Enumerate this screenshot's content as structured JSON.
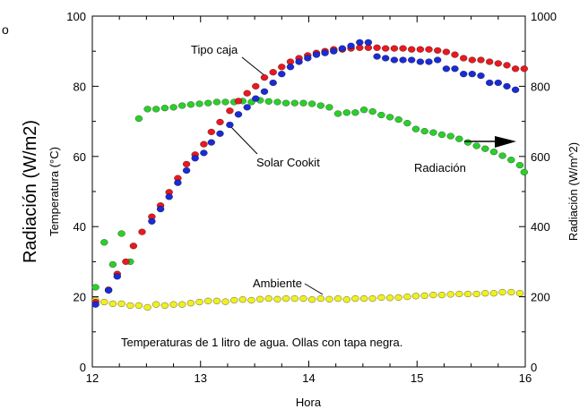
{
  "chart_data": {
    "type": "scatter",
    "xlabel": "Hora",
    "ylabel_left_outer": "Radiación (W/m2)",
    "ylabel_left": "Temperatura (°C)",
    "ylabel_right": "Radiación (W/m^2)",
    "corner_text": "o",
    "note": "Temperaturas de 1 litro de agua. Ollas con tapa negra.",
    "xlim": [
      12,
      16
    ],
    "ylim_left": [
      0,
      100
    ],
    "ylim_right": [
      0,
      1000
    ],
    "x_ticks": [
      "12",
      "13",
      "14",
      "15",
      "16"
    ],
    "y_ticks_left": [
      "0",
      "20",
      "40",
      "60",
      "80",
      "100"
    ],
    "y_ticks_right": [
      "0",
      "200",
      "400",
      "600",
      "800",
      "1000"
    ],
    "annotations": {
      "tipo_caja": "Tipo caja",
      "solar_cookit": "Solar Cookit",
      "radiacion": "Radiación",
      "ambiente": "Ambiente"
    },
    "colors": {
      "tipo_caja": "#e8191f",
      "solar_cookit": "#1a2bd6",
      "radiacion": "#2ad02a",
      "ambiente": "#f0f020"
    },
    "series": [
      {
        "name": "Tipo caja",
        "axis": "left",
        "points": [
          [
            12.03,
            18.5
          ],
          [
            12.15,
            22.0
          ],
          [
            12.23,
            26.5
          ],
          [
            12.31,
            30.0
          ],
          [
            12.38,
            34.5
          ],
          [
            12.46,
            38.5
          ],
          [
            12.55,
            42.8
          ],
          [
            12.63,
            46.0
          ],
          [
            12.71,
            49.8
          ],
          [
            12.79,
            53.8
          ],
          [
            12.87,
            57.8
          ],
          [
            12.95,
            60.5
          ],
          [
            13.03,
            63.5
          ],
          [
            13.1,
            67.0
          ],
          [
            13.18,
            69.8
          ],
          [
            13.27,
            73.0
          ],
          [
            13.35,
            75.8
          ],
          [
            13.43,
            78.0
          ],
          [
            13.51,
            80.0
          ],
          [
            13.59,
            82.5
          ],
          [
            13.67,
            84.0
          ],
          [
            13.75,
            85.5
          ],
          [
            13.83,
            87.0
          ],
          [
            13.91,
            88.0
          ],
          [
            13.99,
            88.8
          ],
          [
            14.07,
            89.5
          ],
          [
            14.15,
            90.0
          ],
          [
            14.23,
            90.5
          ],
          [
            14.31,
            90.5
          ],
          [
            14.39,
            90.8
          ],
          [
            14.47,
            91.0
          ],
          [
            14.55,
            91.0
          ],
          [
            14.63,
            91.0
          ],
          [
            14.71,
            90.8
          ],
          [
            14.79,
            90.8
          ],
          [
            14.87,
            90.8
          ],
          [
            14.95,
            90.5
          ],
          [
            15.03,
            90.5
          ],
          [
            15.11,
            90.5
          ],
          [
            15.19,
            90.2
          ],
          [
            15.27,
            89.8
          ],
          [
            15.35,
            89.0
          ],
          [
            15.43,
            88.0
          ],
          [
            15.51,
            87.5
          ],
          [
            15.59,
            87.5
          ],
          [
            15.67,
            87.0
          ],
          [
            15.75,
            86.5
          ],
          [
            15.83,
            86.0
          ],
          [
            15.91,
            85.0
          ],
          [
            15.99,
            85.0
          ]
        ]
      },
      {
        "name": "Solar Cookit",
        "axis": "left",
        "points": [
          [
            12.03,
            17.8
          ],
          [
            12.15,
            21.8
          ],
          [
            12.23,
            25.8
          ],
          [
            12.55,
            41.5
          ],
          [
            12.63,
            45.0
          ],
          [
            12.71,
            48.5
          ],
          [
            12.79,
            52.5
          ],
          [
            12.87,
            56.0
          ],
          [
            12.95,
            59.5
          ],
          [
            13.03,
            61.0
          ],
          [
            13.1,
            64.0
          ],
          [
            13.18,
            66.5
          ],
          [
            13.27,
            69.0
          ],
          [
            13.35,
            72.0
          ],
          [
            13.43,
            74.0
          ],
          [
            13.51,
            76.5
          ],
          [
            13.59,
            78.5
          ],
          [
            13.67,
            81.0
          ],
          [
            13.75,
            83.5
          ],
          [
            13.83,
            85.5
          ],
          [
            13.91,
            87.0
          ],
          [
            13.99,
            88.0
          ],
          [
            14.07,
            89.0
          ],
          [
            14.15,
            89.5
          ],
          [
            14.23,
            90.0
          ],
          [
            14.31,
            90.8
          ],
          [
            14.39,
            91.5
          ],
          [
            14.47,
            92.5
          ],
          [
            14.55,
            92.5
          ],
          [
            14.63,
            88.5
          ],
          [
            14.71,
            88.0
          ],
          [
            14.79,
            87.5
          ],
          [
            14.87,
            87.5
          ],
          [
            14.95,
            87.5
          ],
          [
            15.03,
            87.0
          ],
          [
            15.11,
            87.0
          ],
          [
            15.19,
            87.5
          ],
          [
            15.27,
            85.0
          ],
          [
            15.35,
            85.0
          ],
          [
            15.43,
            83.5
          ],
          [
            15.51,
            83.5
          ],
          [
            15.59,
            83.0
          ],
          [
            15.67,
            81.0
          ],
          [
            15.75,
            81.0
          ],
          [
            15.83,
            80.0
          ],
          [
            15.91,
            79.0
          ]
        ]
      },
      {
        "name": "Radiación",
        "axis": "right",
        "points": [
          [
            12.03,
            227
          ],
          [
            12.11,
            355
          ],
          [
            12.19,
            292
          ],
          [
            12.27,
            380
          ],
          [
            12.35,
            300
          ],
          [
            12.43,
            708
          ],
          [
            12.51,
            735
          ],
          [
            12.59,
            735
          ],
          [
            12.67,
            738
          ],
          [
            12.75,
            740
          ],
          [
            12.83,
            745
          ],
          [
            12.91,
            748
          ],
          [
            12.99,
            750
          ],
          [
            13.07,
            752
          ],
          [
            13.15,
            755
          ],
          [
            13.23,
            755
          ],
          [
            13.31,
            755
          ],
          [
            13.39,
            758
          ],
          [
            13.47,
            755
          ],
          [
            13.55,
            760
          ],
          [
            13.63,
            757
          ],
          [
            13.71,
            755
          ],
          [
            13.79,
            752
          ],
          [
            13.87,
            752
          ],
          [
            13.95,
            752
          ],
          [
            14.03,
            750
          ],
          [
            14.11,
            745
          ],
          [
            14.19,
            740
          ],
          [
            14.27,
            722
          ],
          [
            14.35,
            725
          ],
          [
            14.43,
            725
          ],
          [
            14.51,
            733
          ],
          [
            14.59,
            728
          ],
          [
            14.67,
            718
          ],
          [
            14.75,
            712
          ],
          [
            14.83,
            705
          ],
          [
            14.91,
            695
          ],
          [
            14.99,
            678
          ],
          [
            15.07,
            672
          ],
          [
            15.15,
            668
          ],
          [
            15.23,
            662
          ],
          [
            15.31,
            658
          ],
          [
            15.39,
            650
          ],
          [
            15.47,
            640
          ],
          [
            15.55,
            630
          ],
          [
            15.63,
            622
          ],
          [
            15.71,
            613
          ],
          [
            15.79,
            602
          ],
          [
            15.87,
            590
          ],
          [
            15.95,
            575
          ],
          [
            15.99,
            555
          ]
        ]
      },
      {
        "name": "Ambiente",
        "axis": "left",
        "points": [
          [
            12.03,
            19.0
          ],
          [
            12.11,
            18.5
          ],
          [
            12.19,
            18.0
          ],
          [
            12.27,
            18.0
          ],
          [
            12.35,
            17.5
          ],
          [
            12.43,
            17.5
          ],
          [
            12.51,
            17.0
          ],
          [
            12.59,
            17.8
          ],
          [
            12.67,
            17.5
          ],
          [
            12.75,
            17.8
          ],
          [
            12.83,
            17.8
          ],
          [
            12.91,
            18.2
          ],
          [
            12.99,
            18.5
          ],
          [
            13.07,
            18.8
          ],
          [
            13.15,
            18.8
          ],
          [
            13.23,
            18.6
          ],
          [
            13.31,
            19.0
          ],
          [
            13.39,
            19.2
          ],
          [
            13.47,
            19.0
          ],
          [
            13.55,
            19.3
          ],
          [
            13.63,
            19.5
          ],
          [
            13.71,
            19.3
          ],
          [
            13.79,
            19.5
          ],
          [
            13.87,
            19.5
          ],
          [
            13.95,
            19.5
          ],
          [
            14.03,
            19.2
          ],
          [
            14.11,
            19.5
          ],
          [
            14.19,
            19.3
          ],
          [
            14.27,
            19.5
          ],
          [
            14.35,
            19.2
          ],
          [
            14.43,
            19.5
          ],
          [
            14.51,
            19.5
          ],
          [
            14.59,
            19.5
          ],
          [
            14.67,
            19.8
          ],
          [
            14.75,
            19.7
          ],
          [
            14.83,
            19.8
          ],
          [
            14.91,
            20.0
          ],
          [
            14.99,
            20.2
          ],
          [
            15.07,
            20.3
          ],
          [
            15.15,
            20.5
          ],
          [
            15.23,
            20.5
          ],
          [
            15.31,
            20.7
          ],
          [
            15.39,
            20.8
          ],
          [
            15.47,
            20.8
          ],
          [
            15.55,
            20.8
          ],
          [
            15.63,
            21.0
          ],
          [
            15.71,
            21.0
          ],
          [
            15.79,
            21.3
          ],
          [
            15.87,
            21.3
          ],
          [
            15.95,
            21.0
          ]
        ]
      }
    ]
  }
}
